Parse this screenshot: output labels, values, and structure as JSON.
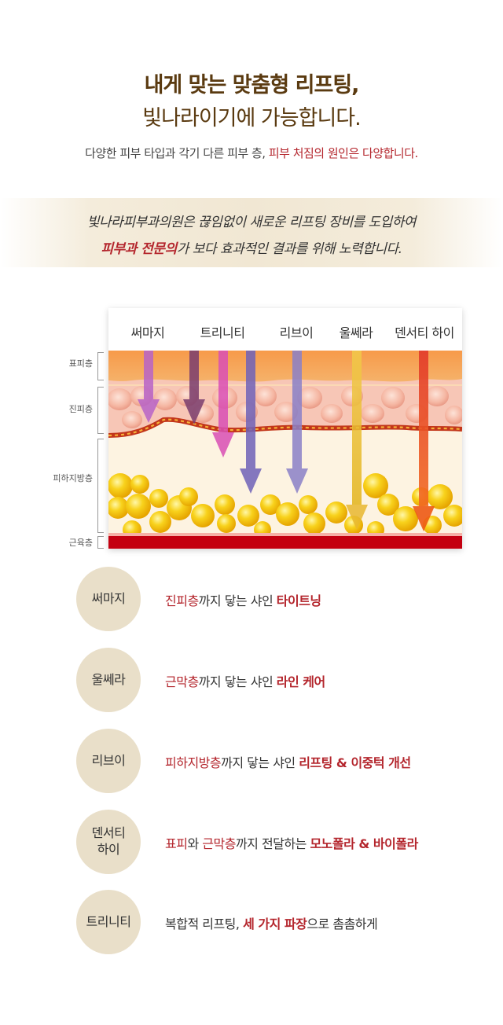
{
  "header": {
    "title_line1": "내게 맞는 맞춤형 리프팅,",
    "title_line2": "빛나라이기에 가능합니다.",
    "subtitle_plain": "다양한 피부 타입과 각기 다른 피부 층, ",
    "subtitle_red": "피부 처짐의 원인은 다양합니다."
  },
  "intro_band": {
    "line1": "빛나라피부과의원은 끊임없이 새로운 리프팅 장비를 도입하여",
    "line2_highlight": "피부과 전문의",
    "line2_rest": "가 보다 효과적인 결과를 위해 노력합니다."
  },
  "diagram": {
    "techniques": [
      "써마지",
      "트리니티",
      "리브이",
      "울쎄라",
      "덴서티 하이"
    ],
    "layers": [
      "표피층",
      "진피층",
      "피하지방층",
      "근육층"
    ],
    "colors": {
      "epidermis": "#f59a4a",
      "dermis": "#f6c2b2",
      "fat_bg": "#fdf2de",
      "fat_ball": "#f6c31a",
      "muscle": "#c40010",
      "thermage": "#b864c8",
      "trinity_dark": "#7a3d6e",
      "trinity_pink": "#d94fb5",
      "trinity_blue": "#6f62b8",
      "liv": "#8a80c8",
      "ulthera": "#efc540",
      "density": "#e8432a"
    }
  },
  "treatments": [
    {
      "name": "써마지",
      "d1": "진피층",
      "d2": "까지 닿는 샤인 ",
      "d3": "타이트닝",
      "d4": "",
      "d5": ""
    },
    {
      "name": "울쎄라",
      "d1": "근막층",
      "d2": "까지 닿는 샤인 ",
      "d3": "라인 케어",
      "d4": "",
      "d5": ""
    },
    {
      "name": "리브이",
      "d1": "피하지방층",
      "d2": "까지 닿는 샤인 ",
      "d3": "리프팅 & 이중턱 개선",
      "d4": "",
      "d5": ""
    },
    {
      "name": "덴서티\n하이",
      "d1": "표피",
      "d2": "와 ",
      "d3": "근막층",
      "d4": "까지 전달하는 ",
      "d5": "모노폴라 & 바이폴라"
    },
    {
      "name": "트리니티",
      "d1": "복합적 리프팅, ",
      "d2": "세 가지 파장",
      "d3": "으로 촘촘하게",
      "d4": "",
      "d5": ""
    }
  ]
}
